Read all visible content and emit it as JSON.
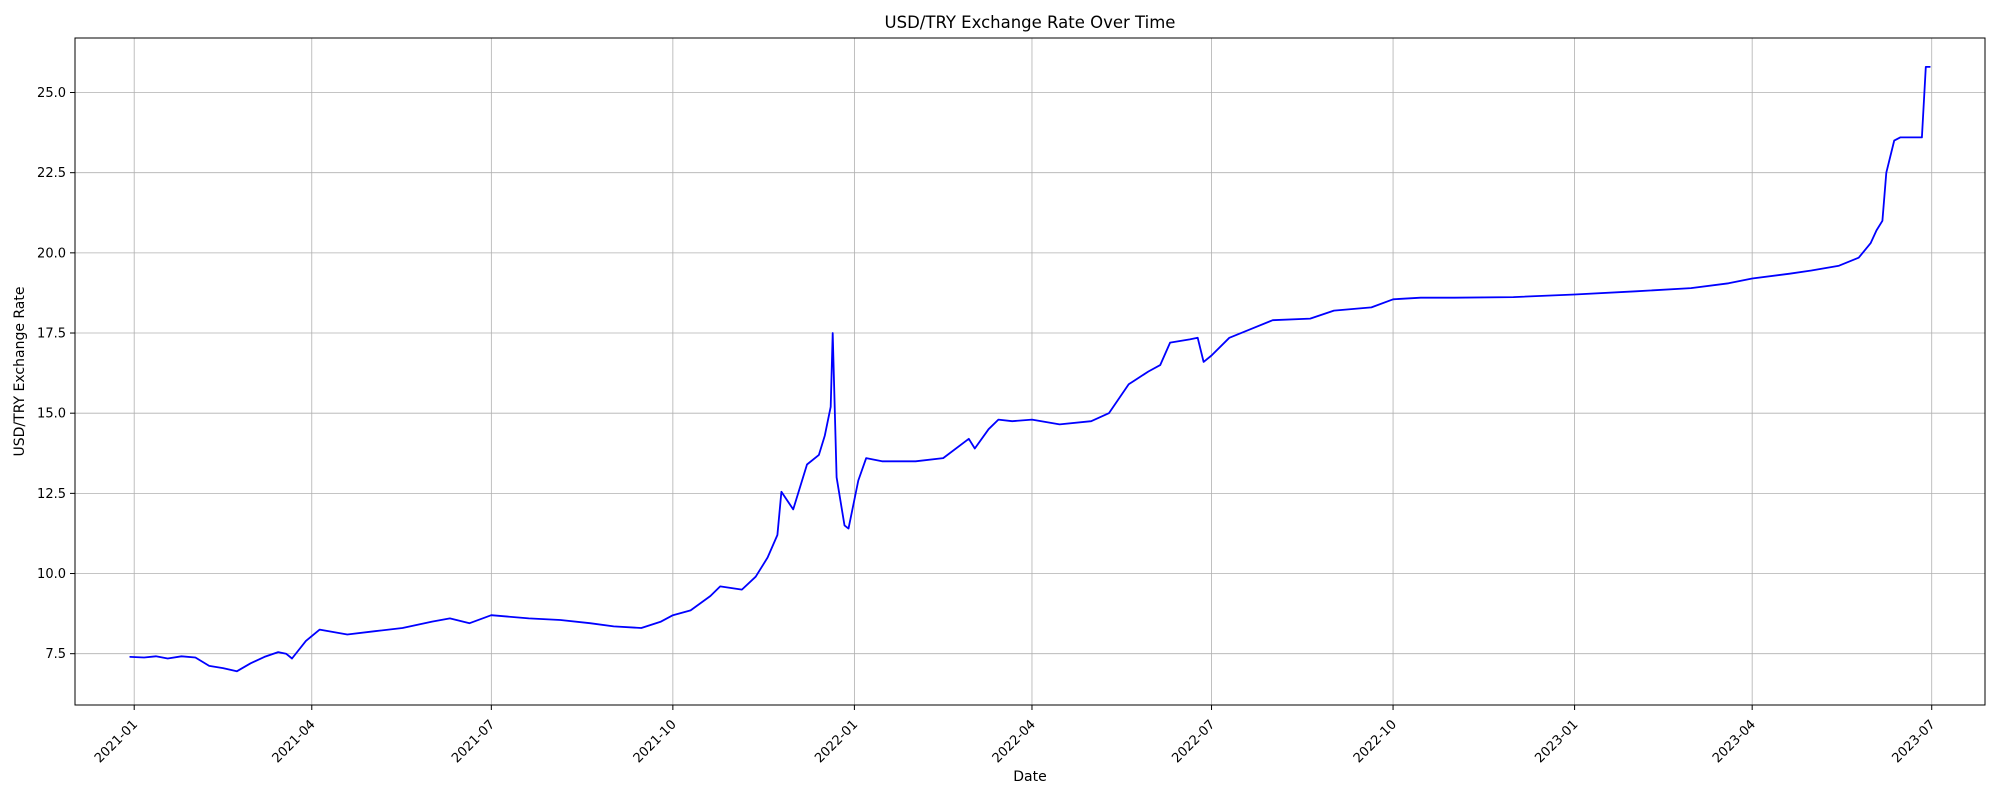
{
  "chart_data": {
    "type": "line",
    "title": "USD/TRY Exchange Rate Over Time",
    "xlabel": "Date",
    "ylabel": "USD/TRY Exchange Rate",
    "xlim": [
      "2020-12-02",
      "2023-07-28"
    ],
    "ylim": [
      5.9,
      26.7
    ],
    "grid": true,
    "line_color": "#0000ff",
    "x_ticks": [
      "2021-01",
      "2021-04",
      "2021-07",
      "2021-10",
      "2022-01",
      "2022-04",
      "2022-07",
      "2022-10",
      "2023-01",
      "2023-04",
      "2023-07"
    ],
    "y_ticks": [
      "7.5",
      "10.0",
      "12.5",
      "15.0",
      "17.5",
      "20.0",
      "22.5",
      "25.0"
    ],
    "series": [
      {
        "x": [
          "2020-12-30",
          "2021-01-06",
          "2021-01-12",
          "2021-01-18",
          "2021-01-25",
          "2021-02-01",
          "2021-02-08",
          "2021-02-15",
          "2021-02-22",
          "2021-03-01",
          "2021-03-08",
          "2021-03-15",
          "2021-03-19",
          "2021-03-22",
          "2021-03-29",
          "2021-04-05",
          "2021-04-19",
          "2021-05-03",
          "2021-05-17",
          "2021-06-01",
          "2021-06-10",
          "2021-06-20",
          "2021-07-01",
          "2021-07-20",
          "2021-08-05",
          "2021-08-20",
          "2021-09-01",
          "2021-09-15",
          "2021-09-25",
          "2021-10-01",
          "2021-10-10",
          "2021-10-20",
          "2021-10-25",
          "2021-11-05",
          "2021-11-12",
          "2021-11-18",
          "2021-11-23",
          "2021-11-25",
          "2021-12-01",
          "2021-12-08",
          "2021-12-14",
          "2021-12-17",
          "2021-12-20",
          "2021-12-21",
          "2021-12-23",
          "2021-12-27",
          "2021-12-29",
          "2022-01-03",
          "2022-01-07",
          "2022-01-15",
          "2022-02-01",
          "2022-02-15",
          "2022-02-28",
          "2022-03-03",
          "2022-03-10",
          "2022-03-15",
          "2022-03-22",
          "2022-04-01",
          "2022-04-15",
          "2022-05-01",
          "2022-05-10",
          "2022-05-20",
          "2022-05-30",
          "2022-06-05",
          "2022-06-10",
          "2022-06-20",
          "2022-06-24",
          "2022-06-27",
          "2022-07-01",
          "2022-07-10",
          "2022-07-20",
          "2022-08-01",
          "2022-08-20",
          "2022-09-01",
          "2022-09-20",
          "2022-10-01",
          "2022-10-15",
          "2022-11-01",
          "2022-12-01",
          "2023-01-01",
          "2023-02-01",
          "2023-03-01",
          "2023-03-20",
          "2023-04-01",
          "2023-04-20",
          "2023-05-01",
          "2023-05-15",
          "2023-05-25",
          "2023-05-31",
          "2023-06-03",
          "2023-06-06",
          "2023-06-08",
          "2023-06-12",
          "2023-06-15",
          "2023-06-20",
          "2023-06-26",
          "2023-06-28",
          "2023-06-30"
        ],
        "values": [
          7.4,
          7.38,
          7.42,
          7.35,
          7.42,
          7.38,
          7.12,
          7.05,
          6.95,
          7.2,
          7.4,
          7.55,
          7.5,
          7.35,
          7.9,
          8.25,
          8.1,
          8.2,
          8.3,
          8.5,
          8.6,
          8.45,
          8.7,
          8.6,
          8.55,
          8.45,
          8.35,
          8.3,
          8.5,
          8.7,
          8.85,
          9.3,
          9.6,
          9.5,
          9.9,
          10.5,
          11.2,
          12.55,
          12.0,
          13.4,
          13.7,
          14.3,
          15.2,
          17.5,
          13.0,
          11.5,
          11.4,
          12.9,
          13.6,
          13.5,
          13.5,
          13.6,
          14.2,
          13.9,
          14.5,
          14.8,
          14.75,
          14.8,
          14.65,
          14.75,
          15.0,
          15.9,
          16.3,
          16.5,
          17.2,
          17.3,
          17.35,
          16.6,
          16.8,
          17.35,
          17.6,
          17.9,
          17.95,
          18.2,
          18.3,
          18.55,
          18.6,
          18.6,
          18.62,
          18.7,
          18.8,
          18.9,
          19.05,
          19.2,
          19.35,
          19.45,
          19.6,
          19.85,
          20.3,
          20.7,
          21.0,
          22.5,
          23.5,
          23.6,
          23.6,
          23.6,
          25.8,
          25.8
        ]
      }
    ]
  }
}
